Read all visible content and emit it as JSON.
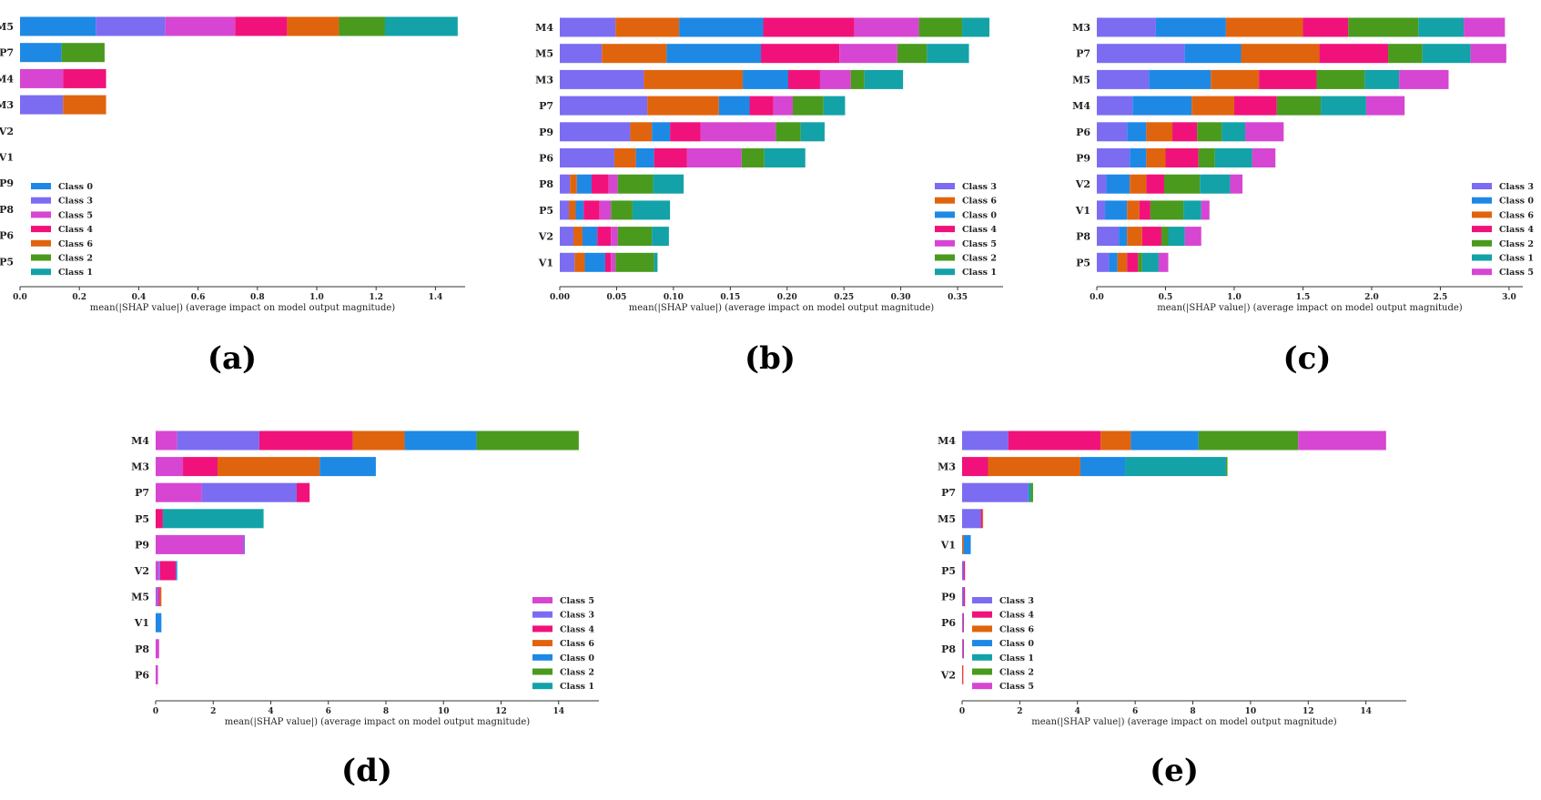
{
  "colors": {
    "Class 0": "#1e88e5",
    "Class 1": "#13a2a8",
    "Class 2": "#4a9a1e",
    "Class 3": "#7b6cf2",
    "Class 4": "#f0127a",
    "Class 5": "#d646d2",
    "Class 6": "#e0640e"
  },
  "chart_data": [
    {
      "type": "bar",
      "stacked": true,
      "orientation": "horizontal",
      "caption": "(a)",
      "xlabel": "mean(|SHAP value|) (average impact on model output magnitude)",
      "xlim": [
        0,
        1.5
      ],
      "xticks": [
        "0.0",
        "0.2",
        "0.4",
        "0.6",
        "0.8",
        "1.0",
        "1.2",
        "1.4"
      ],
      "tick_values": [
        0,
        0.2,
        0.4,
        0.6,
        0.8,
        1.0,
        1.2,
        1.4
      ],
      "legend_position": "lower-left",
      "categories": [
        "M5",
        "P7",
        "M4",
        "M3",
        "V2",
        "V1",
        "P9",
        "P8",
        "P6",
        "P5"
      ],
      "series": [
        {
          "name": "Class 0",
          "values": [
            0.255,
            0.14,
            0,
            0,
            0,
            0,
            0,
            0,
            0,
            0
          ]
        },
        {
          "name": "Class 3",
          "values": [
            0.235,
            0,
            0,
            0.145,
            0,
            0,
            0,
            0,
            0,
            0
          ]
        },
        {
          "name": "Class 5",
          "values": [
            0.235,
            0,
            0.145,
            0,
            0,
            0,
            0,
            0,
            0,
            0
          ]
        },
        {
          "name": "Class 4",
          "values": [
            0.175,
            0,
            0.145,
            0,
            0,
            0,
            0,
            0,
            0,
            0
          ]
        },
        {
          "name": "Class 6",
          "values": [
            0.175,
            0,
            0,
            0.145,
            0,
            0,
            0,
            0,
            0,
            0
          ]
        },
        {
          "name": "Class 2",
          "values": [
            0.155,
            0.145,
            0,
            0,
            0,
            0,
            0,
            0,
            0,
            0
          ]
        },
        {
          "name": "Class 1",
          "values": [
            0.245,
            0,
            0,
            0,
            0,
            0,
            0,
            0,
            0,
            0
          ]
        }
      ]
    },
    {
      "type": "bar",
      "stacked": true,
      "orientation": "horizontal",
      "caption": "(b)",
      "xlabel": "mean(|SHAP value|) (average impact on model output magnitude)",
      "xlim": [
        0,
        0.39
      ],
      "xticks": [
        "0.00",
        "0.05",
        "0.10",
        "0.15",
        "0.20",
        "0.25",
        "0.30",
        "0.35"
      ],
      "tick_values": [
        0,
        0.05,
        0.1,
        0.15,
        0.2,
        0.25,
        0.3,
        0.35
      ],
      "legend_position": "lower-right",
      "categories": [
        "M4",
        "M5",
        "M3",
        "P7",
        "P9",
        "P6",
        "P8",
        "P5",
        "V2",
        "V1"
      ],
      "series": [
        {
          "name": "Class 3",
          "values": [
            0.049,
            0.037,
            0.074,
            0.077,
            0.062,
            0.048,
            0.009,
            0.008,
            0.012,
            0.013
          ]
        },
        {
          "name": "Class 6",
          "values": [
            0.056,
            0.057,
            0.087,
            0.063,
            0.019,
            0.019,
            0.006,
            0.006,
            0.008,
            0.009
          ]
        },
        {
          "name": "Class 0",
          "values": [
            0.074,
            0.083,
            0.04,
            0.027,
            0.016,
            0.016,
            0.013,
            0.007,
            0.013,
            0.018
          ]
        },
        {
          "name": "Class 4",
          "values": [
            0.08,
            0.069,
            0.028,
            0.021,
            0.027,
            0.029,
            0.015,
            0.014,
            0.012,
            0.005
          ]
        },
        {
          "name": "Class 5",
          "values": [
            0.057,
            0.051,
            0.027,
            0.017,
            0.066,
            0.048,
            0.008,
            0.01,
            0.006,
            0.004
          ]
        },
        {
          "name": "Class 2",
          "values": [
            0.038,
            0.026,
            0.012,
            0.027,
            0.022,
            0.02,
            0.031,
            0.019,
            0.03,
            0.034
          ]
        },
        {
          "name": "Class 1",
          "values": [
            0.024,
            0.037,
            0.034,
            0.019,
            0.021,
            0.036,
            0.027,
            0.033,
            0.015,
            0.003
          ]
        }
      ]
    },
    {
      "type": "bar",
      "stacked": true,
      "orientation": "horizontal",
      "caption": "(c)",
      "xlabel": "mean(|SHAP value|) (average impact on model output magnitude)",
      "xlim": [
        0,
        3.1
      ],
      "xticks": [
        "0.0",
        "0.5",
        "1.0",
        "1.5",
        "2.0",
        "2.5",
        "3.0"
      ],
      "tick_values": [
        0,
        0.5,
        1.0,
        1.5,
        2.0,
        2.5,
        3.0
      ],
      "legend_position": "lower-right",
      "categories": [
        "M3",
        "P7",
        "M5",
        "M4",
        "P6",
        "P9",
        "V2",
        "V1",
        "P8",
        "P5"
      ],
      "series": [
        {
          "name": "Class 3",
          "values": [
            0.43,
            0.64,
            0.38,
            0.26,
            0.22,
            0.24,
            0.07,
            0.06,
            0.16,
            0.09
          ]
        },
        {
          "name": "Class 0",
          "values": [
            0.51,
            0.41,
            0.45,
            0.43,
            0.14,
            0.12,
            0.17,
            0.16,
            0.06,
            0.06
          ]
        },
        {
          "name": "Class 6",
          "values": [
            0.56,
            0.57,
            0.35,
            0.31,
            0.19,
            0.14,
            0.12,
            0.09,
            0.11,
            0.07
          ]
        },
        {
          "name": "Class 4",
          "values": [
            0.33,
            0.5,
            0.42,
            0.31,
            0.18,
            0.24,
            0.13,
            0.08,
            0.14,
            0.08
          ]
        },
        {
          "name": "Class 2",
          "values": [
            0.51,
            0.25,
            0.35,
            0.32,
            0.18,
            0.12,
            0.26,
            0.24,
            0.05,
            0.03
          ]
        },
        {
          "name": "Class 1",
          "values": [
            0.33,
            0.35,
            0.25,
            0.33,
            0.17,
            0.27,
            0.22,
            0.13,
            0.12,
            0.12
          ]
        },
        {
          "name": "Class 5",
          "values": [
            0.3,
            0.26,
            0.36,
            0.28,
            0.28,
            0.17,
            0.09,
            0.06,
            0.12,
            0.07
          ]
        }
      ]
    },
    {
      "type": "bar",
      "stacked": true,
      "orientation": "horizontal",
      "caption": "(d)",
      "xlabel": "mean(|SHAP value|) (average impact on model output magnitude)",
      "xlim": [
        0,
        15.4
      ],
      "xticks": [
        "0",
        "2",
        "4",
        "6",
        "8",
        "10",
        "12",
        "14"
      ],
      "tick_values": [
        0,
        2,
        4,
        6,
        8,
        10,
        12,
        14
      ],
      "legend_position": "lower-right",
      "categories": [
        "M4",
        "M3",
        "P7",
        "P5",
        "P9",
        "V2",
        "M5",
        "V1",
        "P8",
        "P6"
      ],
      "series": [
        {
          "name": "Class 5",
          "values": [
            0.75,
            0.95,
            1.6,
            0,
            3.05,
            0.1,
            0.05,
            0,
            0.12,
            0.08
          ]
        },
        {
          "name": "Class 3",
          "values": [
            2.85,
            0,
            3.3,
            0,
            0.05,
            0.05,
            0.05,
            0,
            0,
            0
          ]
        },
        {
          "name": "Class 4",
          "values": [
            3.25,
            1.2,
            0.45,
            0.25,
            0,
            0.55,
            0.05,
            0,
            0,
            0
          ]
        },
        {
          "name": "Class 6",
          "values": [
            1.8,
            3.55,
            0,
            0,
            0,
            0,
            0.05,
            0,
            0,
            0
          ]
        },
        {
          "name": "Class 0",
          "values": [
            2.5,
            1.95,
            0,
            0,
            0,
            0.05,
            0,
            0.2,
            0,
            0
          ]
        },
        {
          "name": "Class 2",
          "values": [
            3.55,
            0,
            0,
            0,
            0,
            0,
            0,
            0,
            0,
            0
          ]
        },
        {
          "name": "Class 1",
          "values": [
            0,
            0,
            0,
            3.5,
            0,
            0,
            0,
            0,
            0,
            0
          ]
        }
      ]
    },
    {
      "type": "bar",
      "stacked": true,
      "orientation": "horizontal",
      "caption": "(e)",
      "xlabel": "mean(|SHAP value|) (average impact on model output magnitude)",
      "xlim": [
        0,
        15.4
      ],
      "xticks": [
        "0",
        "2",
        "4",
        "6",
        "8",
        "10",
        "12",
        "14"
      ],
      "tick_values": [
        0,
        2,
        4,
        6,
        8,
        10,
        12,
        14
      ],
      "legend_position": "lower-left",
      "categories": [
        "M4",
        "M3",
        "P7",
        "M5",
        "V1",
        "P5",
        "P9",
        "P6",
        "P8",
        "V2"
      ],
      "series": [
        {
          "name": "Class 3",
          "values": [
            1.6,
            0,
            2.3,
            0.65,
            0,
            0.05,
            0.05,
            0.03,
            0.03,
            0
          ]
        },
        {
          "name": "Class 4",
          "values": [
            3.2,
            0.9,
            0,
            0.05,
            0,
            0.05,
            0.05,
            0.03,
            0.03,
            0.02
          ]
        },
        {
          "name": "Class 6",
          "values": [
            1.05,
            3.2,
            0,
            0.03,
            0.05,
            0,
            0,
            0,
            0,
            0.02
          ]
        },
        {
          "name": "Class 0",
          "values": [
            2.35,
            1.55,
            0,
            0,
            0.25,
            0,
            0,
            0,
            0,
            0
          ]
        },
        {
          "name": "Class 1",
          "values": [
            0,
            3.5,
            0.08,
            0,
            0,
            0,
            0,
            0,
            0,
            0
          ]
        },
        {
          "name": "Class 2",
          "values": [
            3.45,
            0.05,
            0.08,
            0,
            0,
            0,
            0,
            0,
            0,
            0
          ]
        },
        {
          "name": "Class 5",
          "values": [
            3.05,
            0,
            0,
            0,
            0,
            0,
            0,
            0,
            0,
            0
          ]
        }
      ]
    }
  ]
}
